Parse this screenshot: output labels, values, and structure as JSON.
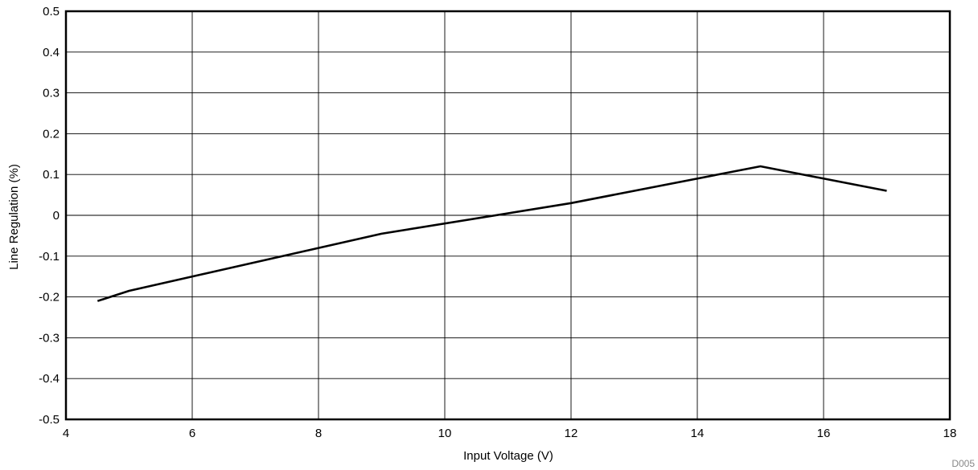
{
  "chart_data": {
    "type": "line",
    "title": "",
    "xlabel": "Input Voltage (V)",
    "ylabel": "Line Regulation (%)",
    "xlim": [
      4,
      18
    ],
    "ylim": [
      -0.5,
      0.5
    ],
    "x_ticks": [
      4,
      6,
      8,
      10,
      12,
      14,
      16,
      18
    ],
    "x_tick_labels": [
      "4",
      "6",
      "8",
      "10",
      "12",
      "14",
      "16",
      "18"
    ],
    "y_ticks": [
      0.5,
      0.4,
      0.3,
      0.2,
      0.1,
      0,
      -0.1,
      -0.2,
      -0.3,
      -0.4,
      -0.5
    ],
    "y_tick_labels": [
      "0.5",
      "0.4",
      "0.3",
      "0.2",
      "0.1",
      "0",
      "-0.1",
      "-0.2",
      "-0.3",
      "-0.4",
      "-0.5"
    ],
    "grid": true,
    "legend": "none",
    "series": [
      {
        "color": "#000000",
        "points": [
          {
            "x": 4.5,
            "y": -0.21
          },
          {
            "x": 5,
            "y": -0.185
          },
          {
            "x": 9,
            "y": -0.045
          },
          {
            "x": 12,
            "y": 0.03
          },
          {
            "x": 15,
            "y": 0.12
          },
          {
            "x": 17,
            "y": 0.06
          }
        ]
      }
    ],
    "figure_id": "D005"
  }
}
